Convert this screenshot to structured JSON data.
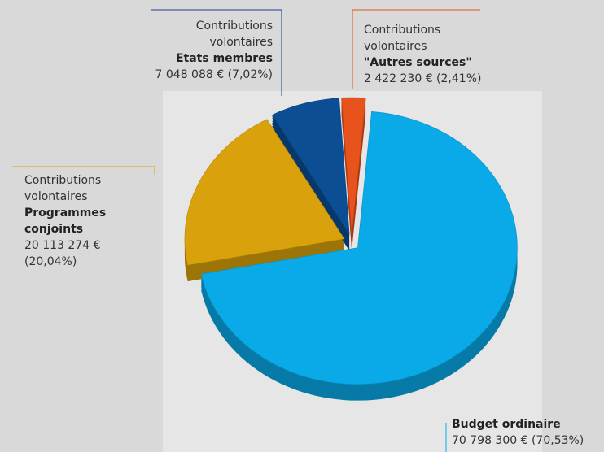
{
  "chart_data": {
    "type": "pie",
    "categories": [
      "Budget ordinaire",
      "Programmes conjoints",
      "Etats membres",
      "\"Autres sources\""
    ],
    "category_prefixes": [
      [],
      [
        "Contributions",
        "volontaires"
      ],
      [
        "Contributions",
        "volontaires"
      ],
      [
        "Contributions",
        "volontaires"
      ]
    ],
    "values": [
      70798300,
      20113274,
      7048088,
      2422230
    ],
    "value_labels": [
      "70 798 300 € (70,53%)",
      "20 113 274 € (20,04%)",
      "7 048 088 € (7,02%)",
      "2 422 230 € (2,41%)"
    ],
    "colors": [
      "#0aa9e8",
      "#d9a20c",
      "#0b4e93",
      "#e8531d"
    ]
  }
}
